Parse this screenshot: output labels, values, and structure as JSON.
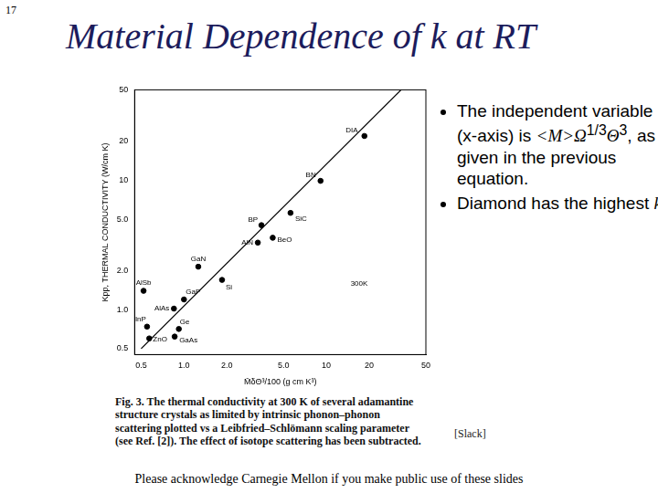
{
  "slide": {
    "page_number": "17",
    "title": "Material Dependence of k at RT",
    "bullets": [
      [
        {
          "text": "The independent variable (x-axis) is "
        },
        {
          "text": "<M>",
          "style": "italic"
        },
        {
          "text": "Ω",
          "style": "italic"
        },
        {
          "text": "1/3",
          "style": "sup"
        },
        {
          "text": "Θ",
          "style": "italic"
        },
        {
          "text": "3",
          "style": "sup"
        },
        {
          "text": ", as given in the previous equation."
        }
      ],
      [
        {
          "text": "Diamond has the highest "
        },
        {
          "text": "k",
          "style": "italic"
        },
        {
          "text": "."
        }
      ]
    ],
    "citation": "[Slack]",
    "footer": "Please acknowledge Carnegie Mellon if you make public use of these slides"
  },
  "chart_data": {
    "type": "scatter",
    "x_label": "M̄δΘ³/100 (g cm K³)",
    "y_label": "Kpp, THERMAL CONDUCTIVITY (W/cm K)",
    "caption": "Fig. 3. The thermal conductivity at 300 K of several adamantine structure crystals as limited by intrinsic phonon–phonon scattering plotted vs a Leibfried–Schlömann scaling parameter (see Ref. [2]). The effect of isotope scattering has been subtracted.",
    "log": true,
    "grid": false,
    "xlim": [
      0.45,
      50
    ],
    "ylim": [
      0.45,
      50
    ],
    "xticks": [
      0.5,
      {
        "value": 1,
        "label": "1.0"
      },
      {
        "value": 2,
        "label": "2.0"
      },
      {
        "value": 5,
        "label": "5.0"
      },
      10,
      20,
      50
    ],
    "yticks": [
      0.5,
      {
        "value": 1,
        "label": "1.0"
      },
      {
        "value": 2,
        "label": "2.0"
      },
      {
        "value": 5,
        "label": "5.0"
      },
      10,
      20,
      50
    ],
    "series": [
      {
        "type": "scatter",
        "marker": "circle",
        "color": "#000000",
        "x": [
          18.5,
          9.1,
          5.6,
          3.5,
          4.2,
          3.3,
          1.85,
          1.26,
          0.52,
          1.0,
          0.85,
          0.55,
          0.57,
          0.92,
          0.86
        ],
        "values": [
          22,
          9.9,
          5.6,
          4.5,
          3.6,
          3.3,
          1.7,
          2.15,
          1.4,
          1.2,
          1.02,
          0.74,
          0.6,
          0.71,
          0.62
        ],
        "point_labels": [
          "DIA.",
          "BN",
          "SiC",
          "BP",
          "BeO",
          "AlN",
          "Si",
          "GaN",
          "AlSb",
          "GaP",
          "AlAs",
          "InP",
          "ZnO",
          "Ge",
          "GaAs"
        ]
      },
      {
        "type": "line",
        "line_style": "solid",
        "color": "#000000",
        "x": [
          0.5,
          33.5
        ],
        "values": [
          0.5,
          50
        ]
      }
    ],
    "annotations": [
      {
        "text": "300K",
        "x": 17,
        "y": 1.6
      }
    ]
  }
}
